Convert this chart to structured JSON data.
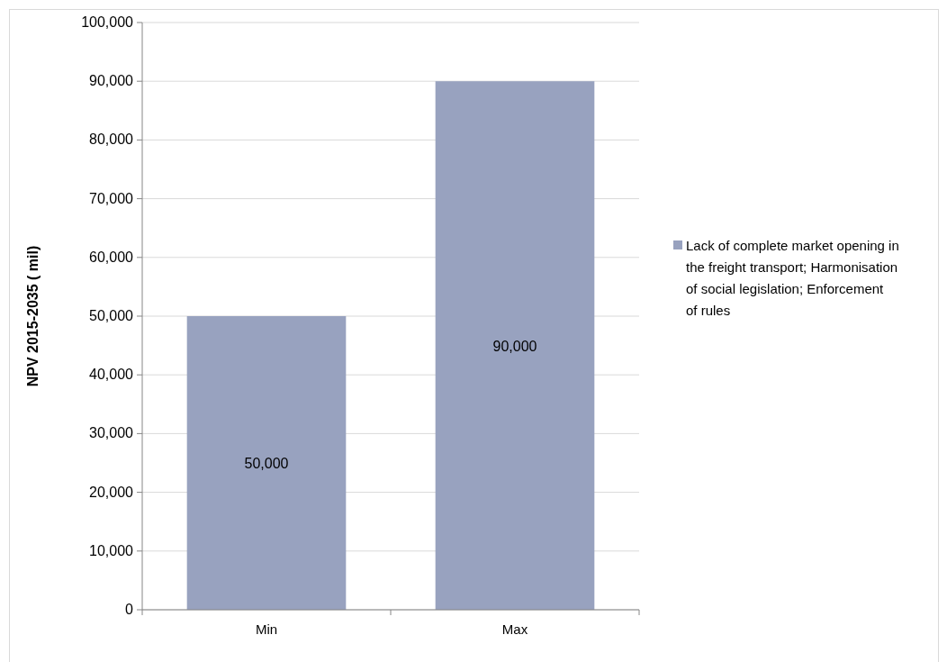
{
  "chart_data": {
    "type": "bar",
    "ylabel": "NPV 2015-2035 ( mil)",
    "categories": [
      "Min",
      "Max"
    ],
    "series": [
      {
        "name": "Lack of complete market opening in the freight transport; Harmonisation of social legislation; Enforcement of rules",
        "color": "#98a2bf",
        "values": [
          50000,
          90000
        ],
        "value_labels": [
          "50,000",
          "90,000"
        ]
      }
    ],
    "ylim": [
      0,
      100000
    ],
    "yticks": [
      {
        "value": 0,
        "label": "0"
      },
      {
        "value": 10000,
        "label": "10,000"
      },
      {
        "value": 20000,
        "label": "20,000"
      },
      {
        "value": 30000,
        "label": "30,000"
      },
      {
        "value": 40000,
        "label": "40,000"
      },
      {
        "value": 50000,
        "label": "50,000"
      },
      {
        "value": 60000,
        "label": "60,000"
      },
      {
        "value": 70000,
        "label": "70,000"
      },
      {
        "value": 80000,
        "label": "80,000"
      },
      {
        "value": 90000,
        "label": "90,000"
      },
      {
        "value": 100000,
        "label": "100,000"
      }
    ],
    "grid": "y",
    "legend": "right"
  }
}
